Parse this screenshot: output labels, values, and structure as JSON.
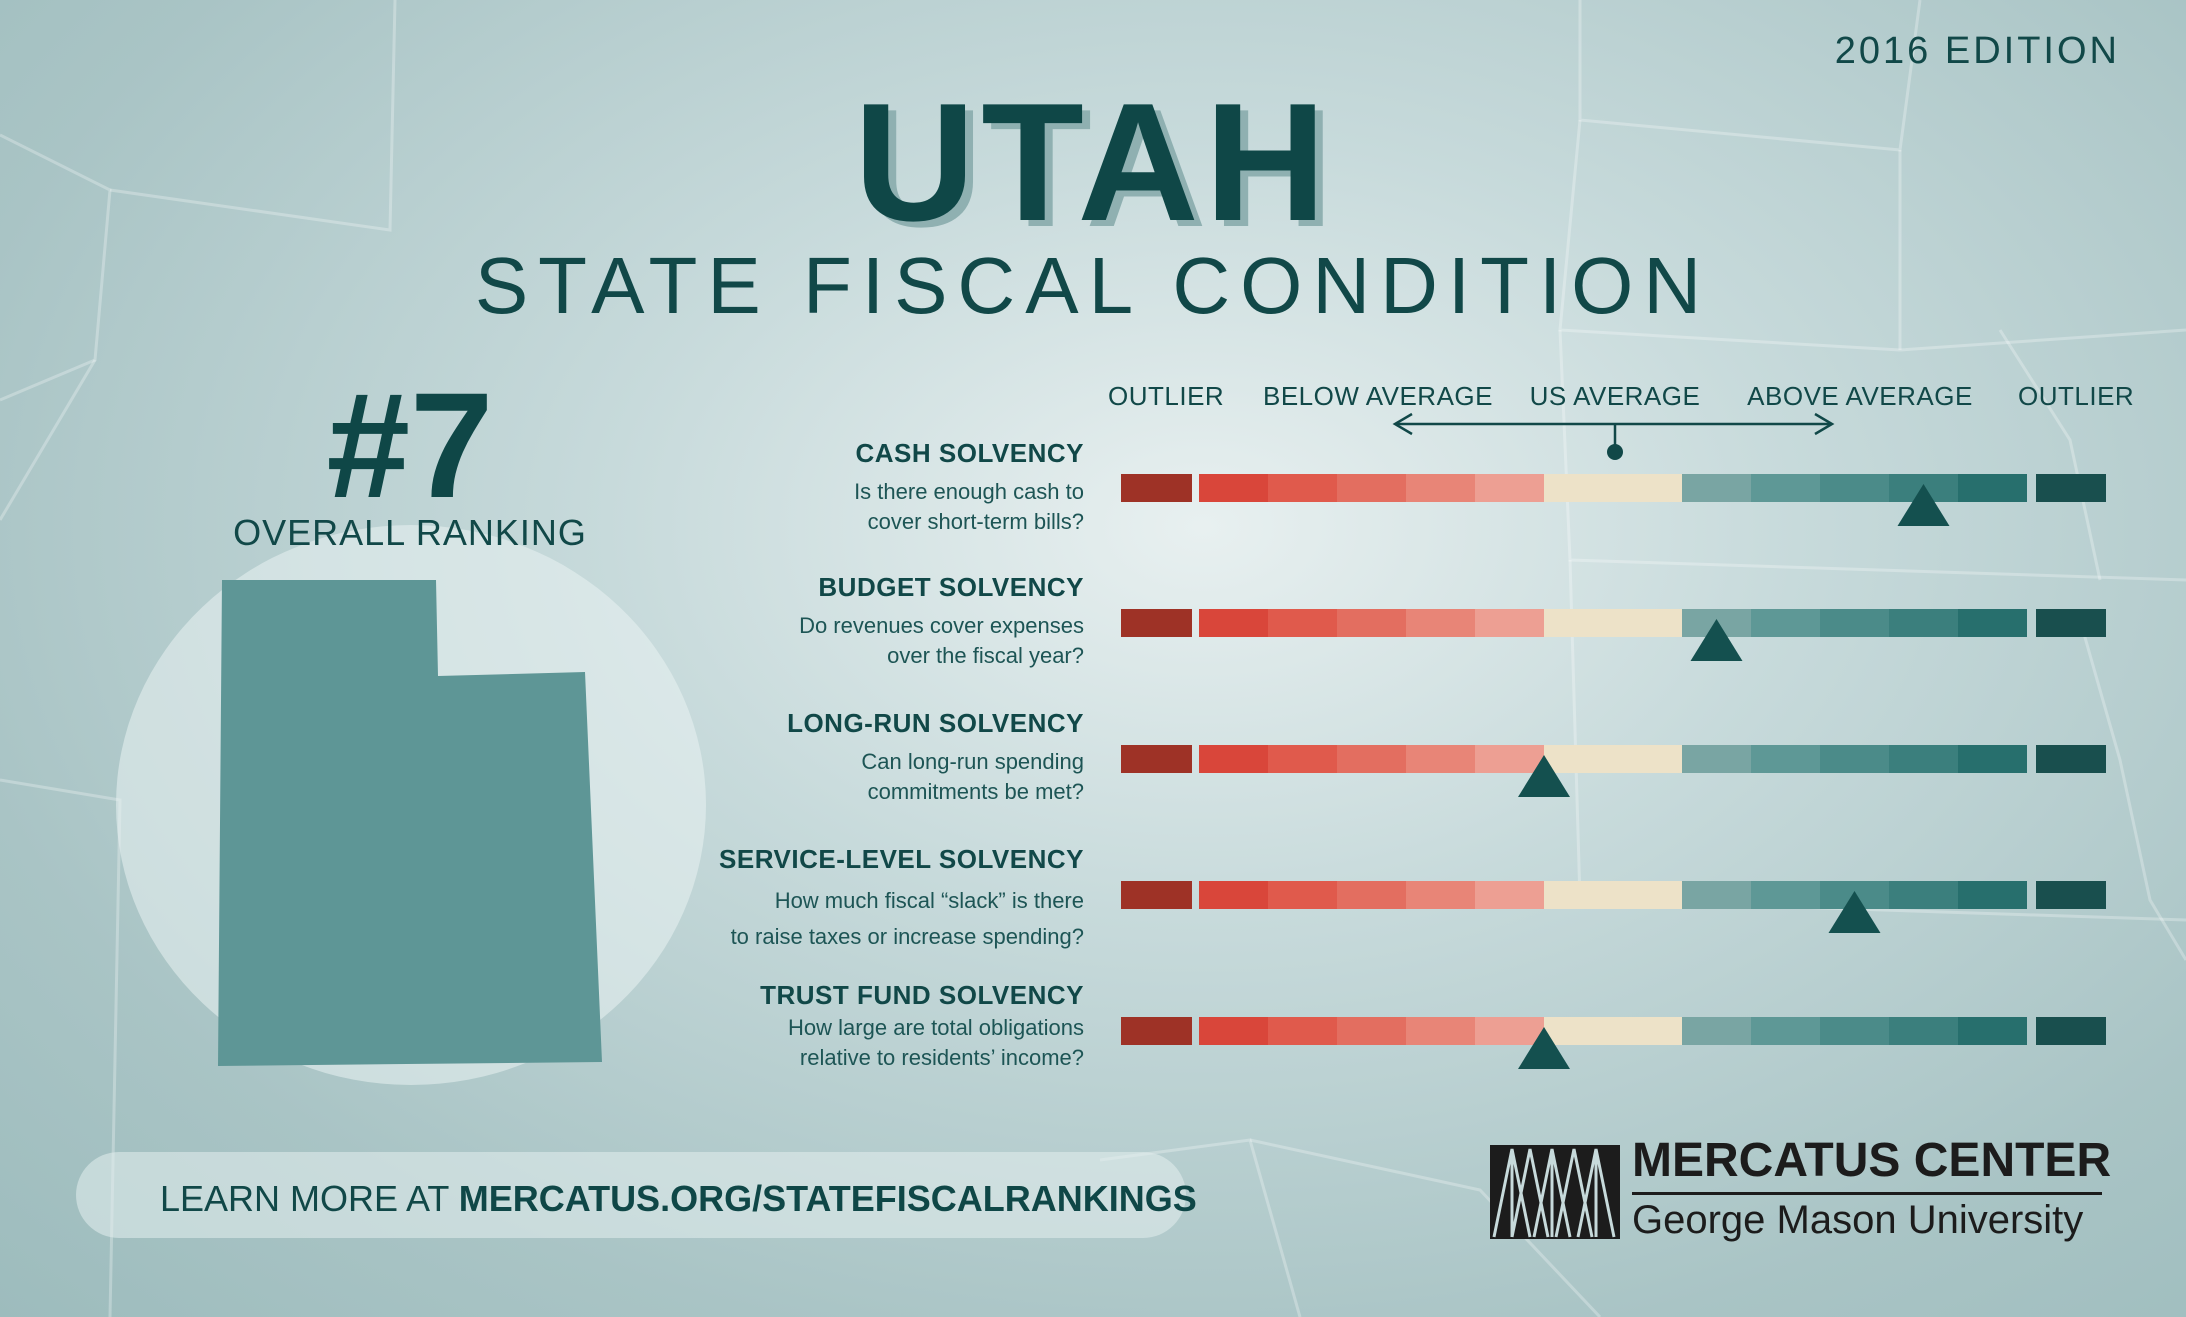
{
  "edition": "2016 EDITION",
  "title": "UTAH",
  "subtitle": "STATE FISCAL CONDITION",
  "ranking": {
    "number": "#7",
    "label": "OVERALL RANKING"
  },
  "scale_labels": {
    "outlier_low": "OUTLIER",
    "below_average": "BELOW AVERAGE",
    "us_average": "US AVERAGE",
    "above_average": "ABOVE AVERAGE",
    "outlier_high": "OUTLIER"
  },
  "learn_more": {
    "prefix": "LEARN MORE AT ",
    "url": "MERCATUS.ORG/STATEFISCALRANKINGS"
  },
  "logo": {
    "name": "MERCATUS CENTER",
    "university": "George Mason University"
  },
  "colors": {
    "segments": [
      "#9e3226",
      "#d9463a",
      "#e05a4c",
      "#e36e60",
      "#e88577",
      "#ed9f93",
      "#ede2c8",
      "#79a5a3",
      "#5e9896",
      "#4b8b89",
      "#3b7f7d",
      "#276f6d",
      "#194f4e"
    ],
    "marker": "#14504f",
    "state_fill": "#5e9696"
  },
  "chart_data": {
    "type": "bar",
    "scale": "13-segment rating scale from OUTLIER (low) through BELOW AVERAGE, US AVERAGE, ABOVE AVERAGE to OUTLIER (high); segment 0 and 12 are outliers, segment 6 is US average",
    "categories": [
      "CASH SOLVENCY",
      "BUDGET SOLVENCY",
      "LONG-RUN SOLVENCY",
      "SERVICE-LEVEL SOLVENCY",
      "TRUST FUND SOLVENCY"
    ],
    "questions": [
      [
        "Is there enough cash to",
        "cover short-term bills?"
      ],
      [
        "Do revenues cover expenses",
        "over the fiscal year?"
      ],
      [
        "Can long-run spending",
        "commitments be met?"
      ],
      [
        "How much fiscal “slack” is there",
        "to raise taxes or increase spending?"
      ],
      [
        "How large are total obligations",
        "relative to residents’ income?"
      ]
    ],
    "series": [
      {
        "values": [
          10.5,
          7.5,
          6.0,
          9.5,
          6.0
        ]
      }
    ]
  }
}
